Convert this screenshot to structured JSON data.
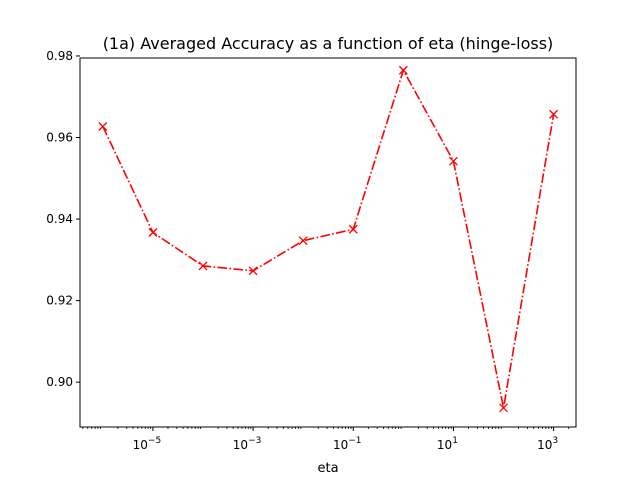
{
  "chart_data": {
    "type": "line",
    "title": "(1a) Averaged Accuracy as a function of eta (hinge-loss)",
    "xlabel": "eta",
    "ylabel": "",
    "x_scale": "log",
    "x_tick_labels": [
      {
        "base": "10",
        "exp": "−5"
      },
      {
        "base": "10",
        "exp": "−3"
      },
      {
        "base": "10",
        "exp": "−1"
      },
      {
        "base": "10",
        "exp": "1"
      },
      {
        "base": "10",
        "exp": "3"
      }
    ],
    "x_tick_values": [
      1e-05,
      0.001,
      0.1,
      10,
      1000
    ],
    "y_ticks": [
      "0.90",
      "0.92",
      "0.94",
      "0.96",
      "0.98"
    ],
    "y_tick_values": [
      0.9,
      0.92,
      0.94,
      0.96,
      0.98
    ],
    "xlim": [
      3.5e-07,
      2800.0
    ],
    "ylim": [
      0.889,
      0.9795
    ],
    "grid": false,
    "legend": "none",
    "series": [
      {
        "color": "#ff0000",
        "line_style": "dash-dot",
        "marker": "x",
        "x": [
          1e-06,
          1e-05,
          0.0001,
          0.001,
          0.01,
          0.1,
          1,
          10,
          100,
          1000
        ],
        "y": [
          0.9627,
          0.9367,
          0.9285,
          0.9273,
          0.9347,
          0.9375,
          0.9765,
          0.9542,
          0.8937,
          0.9657
        ]
      }
    ]
  }
}
